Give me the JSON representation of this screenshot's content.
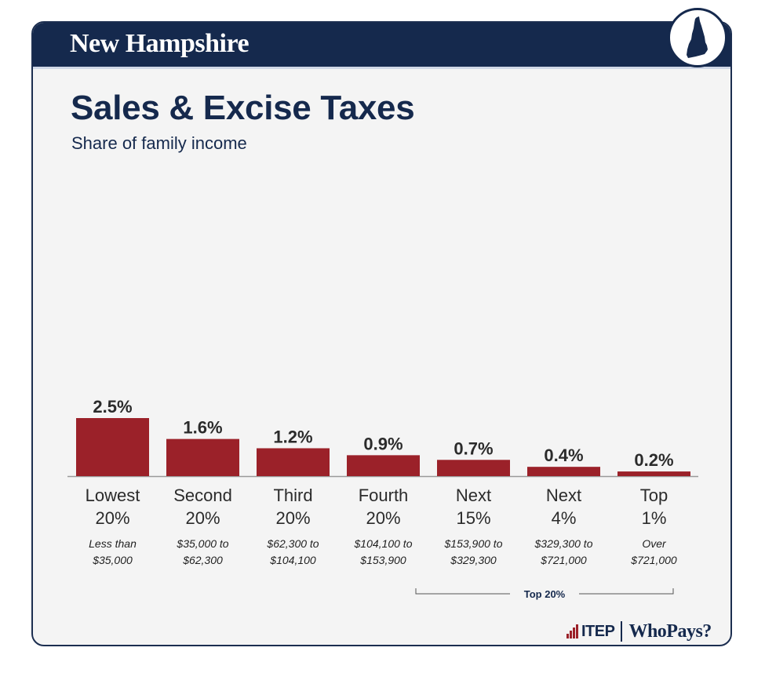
{
  "header": {
    "state_name": "New Hampshire",
    "state_icon": "new-hampshire-map-icon"
  },
  "colors": {
    "navy": "#15294d",
    "bar": "#9b2129",
    "card_bg": "#f4f4f4"
  },
  "chart_data": {
    "type": "bar",
    "title": "Sales & Excise Taxes",
    "subtitle": "Share of family income",
    "xlabel": "",
    "ylabel": "",
    "ylim": [
      0,
      2.5
    ],
    "categories": [
      {
        "label_line1": "Lowest",
        "label_line2": "20%",
        "range_line1": "Less than",
        "range_line2": "$35,000",
        "value": 2.5,
        "value_label": "2.5%"
      },
      {
        "label_line1": "Second",
        "label_line2": "20%",
        "range_line1": "$35,000 to",
        "range_line2": "$62,300",
        "value": 1.6,
        "value_label": "1.6%"
      },
      {
        "label_line1": "Third",
        "label_line2": "20%",
        "range_line1": "$62,300 to",
        "range_line2": "$104,100",
        "value": 1.2,
        "value_label": "1.2%"
      },
      {
        "label_line1": "Fourth",
        "label_line2": "20%",
        "range_line1": "$104,100 to",
        "range_line2": "$153,900",
        "value": 0.9,
        "value_label": "0.9%"
      },
      {
        "label_line1": "Next",
        "label_line2": "15%",
        "range_line1": "$153,900 to",
        "range_line2": "$329,300",
        "value": 0.7,
        "value_label": "0.7%"
      },
      {
        "label_line1": "Next",
        "label_line2": "4%",
        "range_line1": "$329,300 to",
        "range_line2": "$721,000",
        "value": 0.4,
        "value_label": "0.4%"
      },
      {
        "label_line1": "Top",
        "label_line2": "1%",
        "range_line1": "Over",
        "range_line2": "$721,000",
        "value": 0.2,
        "value_label": "0.2%"
      }
    ],
    "group_annotation": {
      "label": "Top 20%",
      "from_index": 4,
      "to_index": 6
    }
  },
  "footer": {
    "itep_label": "ITEP",
    "whopays_label": "WhoPays?"
  }
}
